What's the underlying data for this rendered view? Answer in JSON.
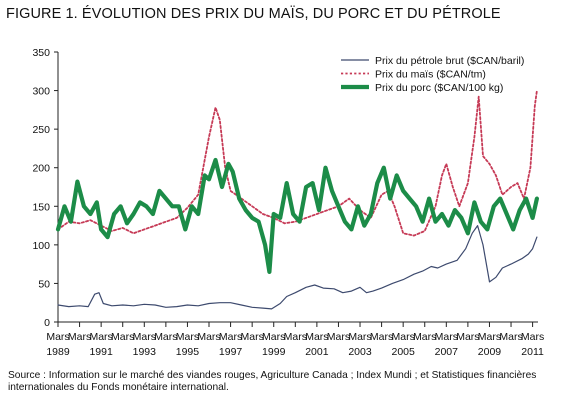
{
  "figure_title": "FIGURE 1. ÉVOLUTION DES PRIX DU MAÏS, DU PORC ET DU PÉTROLE",
  "source": "Source : Information sur le marché des viandes rouges, Agriculture Canada ; Index Mundi ; et Statistiques financières internationales du Fonds monétaire international.",
  "chart_data": {
    "type": "line",
    "title": "",
    "xlabel": "",
    "ylabel": "",
    "xlim": [
      1989.0,
      2011.25
    ],
    "ylim": [
      0,
      350
    ],
    "yticks": [
      0,
      50,
      100,
      150,
      200,
      250,
      300,
      350
    ],
    "xticks": [
      {
        "x": 1989,
        "line1": "Mars",
        "line2": "1989"
      },
      {
        "x": 1990,
        "line1": "Mars",
        "line2": ""
      },
      {
        "x": 1991,
        "line1": "Mars",
        "line2": "1991"
      },
      {
        "x": 1992,
        "line1": "Mars",
        "line2": ""
      },
      {
        "x": 1993,
        "line1": "Mars",
        "line2": "1993"
      },
      {
        "x": 1994,
        "line1": "Mars",
        "line2": ""
      },
      {
        "x": 1995,
        "line1": "Mars",
        "line2": "1995"
      },
      {
        "x": 1996,
        "line1": "Mars",
        "line2": ""
      },
      {
        "x": 1997,
        "line1": "Mars",
        "line2": "1997"
      },
      {
        "x": 1998,
        "line1": "Mars",
        "line2": ""
      },
      {
        "x": 1999,
        "line1": "Mars",
        "line2": "1999"
      },
      {
        "x": 2000,
        "line1": "Mars",
        "line2": ""
      },
      {
        "x": 2001,
        "line1": "Mars",
        "line2": "2001"
      },
      {
        "x": 2002,
        "line1": "Mars",
        "line2": ""
      },
      {
        "x": 2003,
        "line1": "Mars",
        "line2": "2003"
      },
      {
        "x": 2004,
        "line1": "Mars",
        "line2": ""
      },
      {
        "x": 2005,
        "line1": "Mars",
        "line2": "2005"
      },
      {
        "x": 2006,
        "line1": "Mars",
        "line2": ""
      },
      {
        "x": 2007,
        "line1": "Mars",
        "line2": "2007"
      },
      {
        "x": 2008,
        "line1": "Mars",
        "line2": ""
      },
      {
        "x": 2009,
        "line1": "Mars",
        "line2": "2009"
      },
      {
        "x": 2010,
        "line1": "Mars",
        "line2": ""
      },
      {
        "x": 2011,
        "line1": "Mars",
        "line2": "2011"
      }
    ],
    "grid": false,
    "legend_position": "top-right",
    "series": [
      {
        "name": "Prix du pétrole brut ($CAN/baril)",
        "color": "#3d4a6e",
        "style": "solid-thin",
        "x": [
          1989.0,
          1989.5,
          1990.0,
          1990.4,
          1990.7,
          1990.9,
          1991.1,
          1991.5,
          1992.0,
          1992.5,
          1993.0,
          1993.5,
          1994.0,
          1994.5,
          1995.0,
          1995.5,
          1996.0,
          1996.5,
          1997.0,
          1997.5,
          1998.0,
          1998.5,
          1998.9,
          1999.3,
          1999.6,
          2000.0,
          2000.5,
          2000.9,
          2001.3,
          2001.8,
          2002.2,
          2002.6,
          2003.0,
          2003.3,
          2003.6,
          2004.0,
          2004.5,
          2005.0,
          2005.5,
          2005.9,
          2006.3,
          2006.6,
          2007.0,
          2007.5,
          2007.9,
          2008.2,
          2008.45,
          2008.7,
          2009.0,
          2009.3,
          2009.6,
          2010.0,
          2010.5,
          2010.8,
          2011.0,
          2011.2
        ],
        "y": [
          22,
          20,
          21,
          20,
          36,
          38,
          24,
          21,
          22,
          21,
          23,
          22,
          19,
          20,
          22,
          21,
          24,
          25,
          25,
          22,
          19,
          18,
          17,
          24,
          33,
          38,
          45,
          48,
          44,
          43,
          38,
          40,
          45,
          38,
          40,
          44,
          50,
          55,
          62,
          66,
          72,
          70,
          75,
          80,
          95,
          115,
          125,
          100,
          52,
          58,
          70,
          75,
          82,
          88,
          95,
          110
        ]
      },
      {
        "name": "Prix du maïs ($CAN/tm)",
        "color": "#c63a56",
        "style": "dotted",
        "x": [
          1989.0,
          1989.5,
          1990.0,
          1990.5,
          1991.0,
          1991.5,
          1992.0,
          1992.5,
          1993.0,
          1993.5,
          1994.0,
          1994.5,
          1995.0,
          1995.5,
          1996.0,
          1996.3,
          1996.5,
          1996.75,
          1997.0,
          1997.5,
          1998.0,
          1998.5,
          1999.0,
          1999.5,
          2000.0,
          2000.5,
          2001.0,
          2001.5,
          2002.0,
          2002.5,
          2003.0,
          2003.5,
          2004.0,
          2004.3,
          2004.6,
          2005.0,
          2005.5,
          2006.0,
          2006.5,
          2006.8,
          2007.0,
          2007.3,
          2007.6,
          2008.0,
          2008.3,
          2008.5,
          2008.7,
          2009.0,
          2009.3,
          2009.6,
          2010.0,
          2010.3,
          2010.6,
          2010.9,
          2011.1,
          2011.2
        ],
        "y": [
          120,
          130,
          128,
          132,
          125,
          118,
          122,
          115,
          120,
          125,
          130,
          135,
          148,
          165,
          240,
          278,
          262,
          200,
          170,
          160,
          150,
          140,
          135,
          128,
          130,
          135,
          140,
          145,
          150,
          160,
          145,
          135,
          165,
          170,
          150,
          115,
          112,
          118,
          150,
          190,
          205,
          175,
          150,
          180,
          240,
          292,
          215,
          205,
          190,
          165,
          175,
          180,
          160,
          200,
          280,
          300
        ]
      },
      {
        "name": "Prix du porc ($CAN/100 kg)",
        "color": "#1c8c48",
        "style": "solid-thick",
        "x": [
          1989.0,
          1989.3,
          1989.6,
          1989.9,
          1990.2,
          1990.5,
          1990.8,
          1991.0,
          1991.3,
          1991.6,
          1991.9,
          1992.2,
          1992.5,
          1992.8,
          1993.1,
          1993.4,
          1993.7,
          1994.0,
          1994.3,
          1994.6,
          1994.9,
          1995.2,
          1995.5,
          1995.8,
          1996.0,
          1996.3,
          1996.6,
          1996.9,
          1997.1,
          1997.4,
          1997.7,
          1998.0,
          1998.3,
          1998.6,
          1998.8,
          1999.0,
          1999.3,
          1999.6,
          1999.9,
          2000.2,
          2000.5,
          2000.8,
          2001.1,
          2001.4,
          2001.7,
          2002.0,
          2002.3,
          2002.6,
          2002.9,
          2003.2,
          2003.5,
          2003.8,
          2004.1,
          2004.4,
          2004.7,
          2005.0,
          2005.3,
          2005.6,
          2005.9,
          2006.2,
          2006.5,
          2006.8,
          2007.1,
          2007.4,
          2007.7,
          2008.0,
          2008.3,
          2008.6,
          2008.9,
          2009.2,
          2009.5,
          2009.8,
          2010.1,
          2010.4,
          2010.7,
          2011.0,
          2011.2
        ],
        "y": [
          120,
          150,
          130,
          182,
          150,
          140,
          155,
          120,
          110,
          140,
          150,
          128,
          140,
          155,
          150,
          140,
          170,
          160,
          150,
          150,
          120,
          150,
          140,
          190,
          185,
          210,
          175,
          205,
          195,
          160,
          145,
          135,
          130,
          100,
          65,
          140,
          135,
          180,
          140,
          130,
          175,
          180,
          145,
          200,
          170,
          150,
          130,
          120,
          150,
          125,
          140,
          180,
          200,
          160,
          190,
          170,
          160,
          150,
          130,
          160,
          130,
          140,
          125,
          145,
          135,
          115,
          155,
          130,
          120,
          150,
          160,
          140,
          120,
          145,
          160,
          135,
          160
        ]
      }
    ]
  }
}
